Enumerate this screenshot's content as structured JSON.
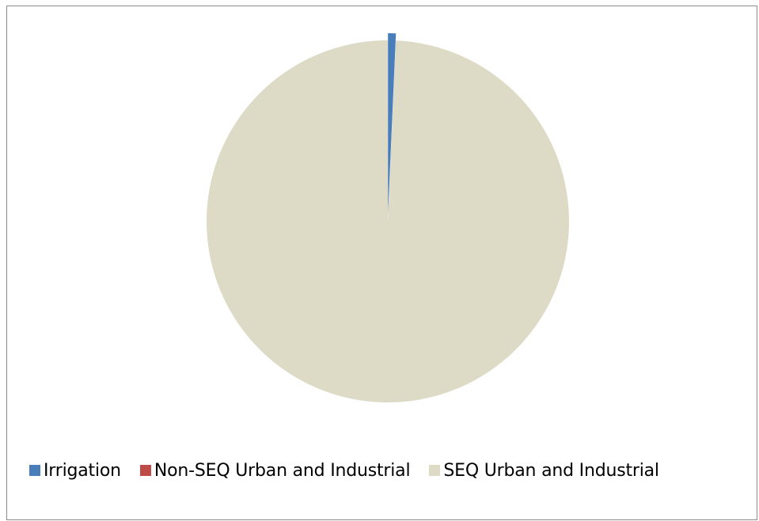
{
  "chart_data": {
    "type": "pie",
    "title": "",
    "start_angle_deg": 0,
    "direction": "clockwise",
    "categories": [
      "Irrigation",
      "Non-SEQ Urban and Industrial",
      "SEQ Urban and Industrial"
    ],
    "values": [
      0.7,
      0.0,
      99.3
    ],
    "colors": [
      "#4a7ebb",
      "#be4b48",
      "#dddbc6"
    ],
    "exploded": [
      "Irrigation"
    ],
    "legend_position": "bottom"
  }
}
